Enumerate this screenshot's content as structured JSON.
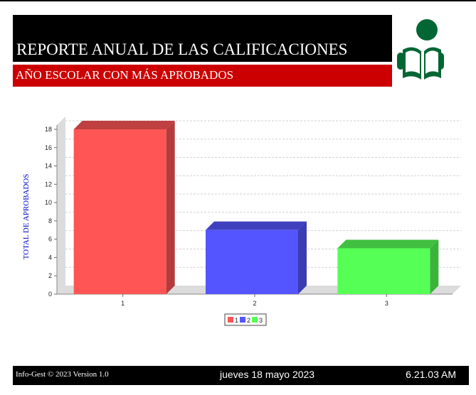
{
  "header": {
    "title": "REPORTE ANUAL DE LAS CALIFICACIONES",
    "subtitle": "AÑO ESCOLAR CON MÁS APROBADOS"
  },
  "logo": {
    "icon": "reading-person-icon",
    "color": "#006633"
  },
  "chart_data": {
    "type": "bar",
    "categories": [
      "1",
      "2",
      "3"
    ],
    "values": [
      18,
      7,
      5
    ],
    "series": [
      {
        "name": "1",
        "color": "#ff5555"
      },
      {
        "name": "2",
        "color": "#5555ff"
      },
      {
        "name": "3",
        "color": "#55ff55"
      }
    ],
    "ylabel": "TOTAL DE APROBADOS",
    "ylim": [
      0,
      18
    ],
    "yticks": [
      0,
      2,
      4,
      6,
      8,
      10,
      12,
      14,
      16,
      18
    ],
    "grid": true,
    "legend": "bottom-center"
  },
  "footer": {
    "copyright": "Info-Gest © 2023 Version 1.0",
    "date": "jueves 18 mayo 2023",
    "time": "6.21.03 AM"
  }
}
